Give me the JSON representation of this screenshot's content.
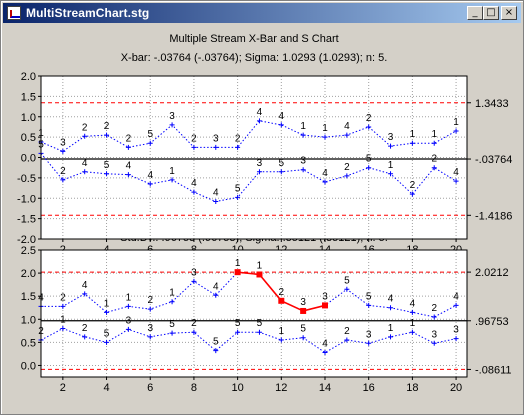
{
  "window": {
    "title": "MultiStreamChart.stg",
    "icons": [
      "chart-app-icon",
      "minimize-icon",
      "maximize-icon",
      "close-icon"
    ],
    "buttons": {
      "minimize": "_",
      "maximize": "□",
      "close": "×"
    }
  },
  "chart_data": [
    {
      "type": "line",
      "title": "Multiple Stream X-Bar and S Chart",
      "subtitle": "X-bar: -.03764 (-.03764); Sigma: 1.0293 (1.0293); n: 5.",
      "xlabel": "",
      "ylabel": "",
      "xlim": [
        1,
        20.5
      ],
      "ylim": [
        -2.0,
        2.0
      ],
      "x_ticks": [
        2,
        4,
        6,
        8,
        10,
        12,
        14,
        16,
        18,
        20
      ],
      "y_ticks": [
        2.0,
        1.5,
        1.0,
        0.5,
        0.0,
        -0.5,
        -1.0,
        -1.5,
        -2.0
      ],
      "y_tick_labels": [
        "2.0",
        "1.5",
        "1.0",
        "0.5",
        "0.0",
        "-0.5",
        "-1.0",
        "-1.5",
        "-2.0"
      ],
      "grid": true,
      "center_line": -0.03764,
      "ucl": 1.3433,
      "lcl": -1.4186,
      "right_labels": [
        "1.3433",
        "-.03764",
        "-1.4186"
      ],
      "colors": {
        "series": "#0000ff",
        "center": "#000000",
        "limits": "#ff0000",
        "grid": "#a0a0a0"
      },
      "x": [
        1,
        2,
        3,
        4,
        5,
        6,
        7,
        8,
        9,
        10,
        11,
        12,
        13,
        14,
        15,
        16,
        17,
        18,
        19,
        20
      ],
      "series": [
        {
          "values": [
            0.38,
            0.15,
            0.52,
            0.55,
            0.25,
            0.35,
            0.8,
            0.25,
            0.25,
            0.25,
            0.9,
            0.8,
            0.55,
            0.5,
            0.55,
            0.75,
            0.28,
            0.35,
            0.35,
            0.65
          ],
          "labels": [
            "1",
            "3",
            "2",
            "2",
            "2",
            "5",
            "3",
            "2",
            "3",
            "2",
            "4",
            "4",
            "1",
            "1",
            "4",
            "2",
            "3",
            "1",
            "1",
            "1"
          ]
        },
        {
          "values": [
            0.1,
            -0.55,
            -0.35,
            -0.4,
            -0.42,
            -0.65,
            -0.55,
            -0.85,
            -1.08,
            -0.98,
            -0.35,
            -0.35,
            -0.3,
            -0.6,
            -0.45,
            -0.25,
            -0.4,
            -0.9,
            -0.25,
            -0.58
          ],
          "labels": [
            "5",
            "2",
            "4",
            "5",
            "4",
            "4",
            "1",
            "4",
            "4",
            "5",
            "3",
            "5",
            "3",
            "4",
            "2",
            "5",
            "1",
            "2",
            "2",
            "4"
          ]
        }
      ]
    },
    {
      "type": "line",
      "title": "Std.Dv.: .96753 (.96753); Sigma: .35121 (.35121); n: 5.",
      "xlabel": "",
      "ylabel": "",
      "xlim": [
        1,
        20.5
      ],
      "ylim": [
        -0.25,
        2.5
      ],
      "x_ticks": [
        2,
        4,
        6,
        8,
        10,
        12,
        14,
        16,
        18,
        20
      ],
      "y_ticks": [
        2.5,
        2.0,
        1.5,
        1.0,
        0.5,
        0.0
      ],
      "y_tick_labels": [
        "2.5",
        "2.0",
        "1.5",
        "1.0",
        "0.5",
        "0.0"
      ],
      "grid": true,
      "center_line": 0.96753,
      "ucl": 2.0212,
      "lcl": -0.08611,
      "right_labels": [
        "2.0212",
        ".96753",
        "-.08611"
      ],
      "colors": {
        "series": "#0000ff",
        "center": "#000000",
        "limits": "#ff0000",
        "grid": "#a0a0a0",
        "highlight": "#ff0000"
      },
      "x": [
        1,
        2,
        3,
        4,
        5,
        6,
        7,
        8,
        9,
        10,
        11,
        12,
        13,
        14,
        15,
        16,
        17,
        18,
        19,
        20
      ],
      "highlight_range": [
        10,
        14
      ],
      "series": [
        {
          "values": [
            1.28,
            1.28,
            1.55,
            1.15,
            1.28,
            1.22,
            1.38,
            1.82,
            1.52,
            2.02,
            1.97,
            1.4,
            1.18,
            1.3,
            1.65,
            1.3,
            1.25,
            1.15,
            1.05,
            1.3
          ],
          "labels": [
            "4",
            "2",
            "4",
            "1",
            "1",
            "2",
            "1",
            "3",
            "4",
            "1",
            "1",
            "2",
            "3",
            "3",
            "5",
            "5",
            "4",
            "4",
            "2",
            "4"
          ]
        },
        {
          "values": [
            0.55,
            0.8,
            0.62,
            0.5,
            0.78,
            0.62,
            0.7,
            0.72,
            0.32,
            0.72,
            0.72,
            0.55,
            0.6,
            0.28,
            0.55,
            0.48,
            0.62,
            0.72,
            0.48,
            0.58
          ],
          "labels": [
            "2",
            "1",
            "2",
            "5",
            "3",
            "3",
            "5",
            "2",
            "5",
            "5",
            "5",
            "1",
            "5",
            "4",
            "2",
            "3",
            "1",
            "1",
            "3",
            "3"
          ]
        }
      ]
    }
  ]
}
